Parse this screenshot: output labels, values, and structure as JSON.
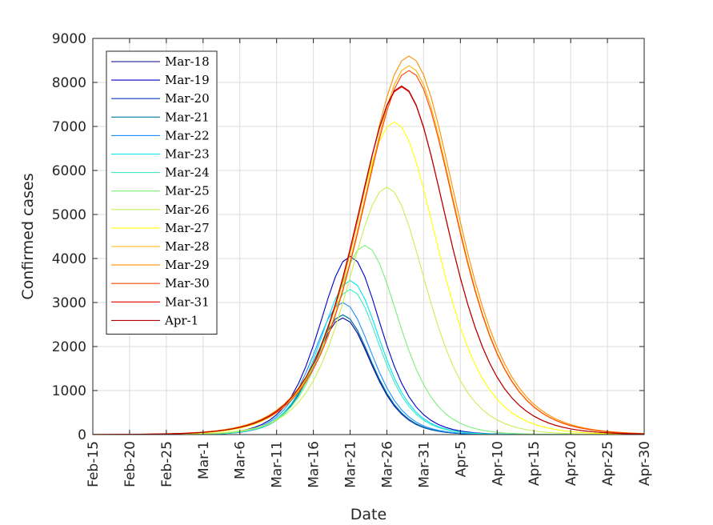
{
  "chart_data": {
    "type": "line",
    "xlabel": "Date",
    "ylabel": "Confirmed cases",
    "xlim": [
      "Feb-15",
      "Apr-30"
    ],
    "ylim": [
      0,
      9000
    ],
    "grid": true,
    "legend_position": "top-left",
    "x_tick_labels": [
      "Feb-15",
      "Feb-20",
      "Feb-25",
      "Mar-1",
      "Mar-6",
      "Mar-11",
      "Mar-16",
      "Mar-21",
      "Mar-26",
      "Mar-31",
      "Apr-5",
      "Apr-10",
      "Apr-15",
      "Apr-20",
      "Apr-25",
      "Apr-30"
    ],
    "y_tick_labels": [
      "0",
      "1000",
      "2000",
      "3000",
      "4000",
      "5000",
      "6000",
      "7000",
      "8000",
      "9000"
    ],
    "y_ticks": [
      0,
      1000,
      2000,
      3000,
      4000,
      5000,
      6000,
      7000,
      8000,
      9000
    ],
    "series": [
      {
        "name": "Mar-18",
        "color": "#00008f",
        "peak_date": "Mar-20",
        "peak": 2650,
        "width": 3.9
      },
      {
        "name": "Mar-19",
        "color": "#0000c8",
        "peak_date": "Mar-21",
        "peak": 4050,
        "width": 4.2
      },
      {
        "name": "Mar-20",
        "color": "#0a3cc8",
        "peak_date": "Mar-20",
        "peak": 2720,
        "width": 3.9
      },
      {
        "name": "Mar-21",
        "color": "#007fa0",
        "peak_date": "Mar-20",
        "peak": 2720,
        "width": 3.95
      },
      {
        "name": "Mar-22",
        "color": "#1e90ff",
        "peak_date": "Mar-20",
        "peak": 3000,
        "width": 4.0
      },
      {
        "name": "Mar-23",
        "color": "#00e5f0",
        "peak_date": "Mar-21",
        "peak": 3500,
        "width": 4.1
      },
      {
        "name": "Mar-24",
        "color": "#40e8c8",
        "peak_date": "Mar-21",
        "peak": 3300,
        "width": 4.05
      },
      {
        "name": "Mar-25",
        "color": "#7cf07c",
        "peak_date": "Mar-23",
        "peak": 4300,
        "width": 4.6
      },
      {
        "name": "Mar-26",
        "color": "#c8f050",
        "peak_date": "Mar-26",
        "peak": 5620,
        "width": 5.3
      },
      {
        "name": "Mar-27",
        "color": "#ffff00",
        "peak_date": "Mar-27",
        "peak": 7100,
        "width": 5.9
      },
      {
        "name": "Mar-28",
        "color": "#ffb000",
        "peak_date": "Mar-29",
        "peak": 8380,
        "width": 6.4
      },
      {
        "name": "Mar-29",
        "color": "#ff8c00",
        "peak_date": "Mar-29",
        "peak": 8600,
        "width": 6.5
      },
      {
        "name": "Mar-30",
        "color": "#ff4500",
        "peak_date": "Mar-29",
        "peak": 8270,
        "width": 6.4
      },
      {
        "name": "Mar-31",
        "color": "#e60000",
        "peak_date": "Mar-28",
        "peak": 7900,
        "width": 6.2
      },
      {
        "name": "Apr-1",
        "color": "#b40000",
        "peak_date": "Mar-28",
        "peak": 7920,
        "width": 6.2
      }
    ]
  }
}
